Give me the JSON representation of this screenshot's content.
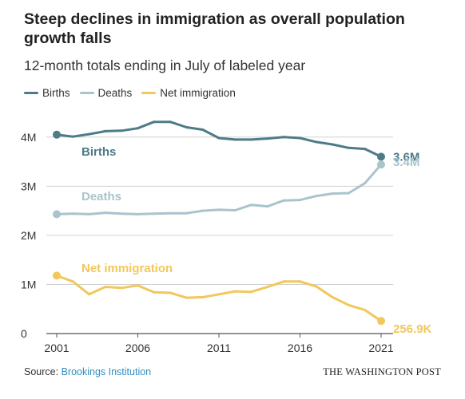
{
  "header": {
    "title": "Steep declines in immigration as overall population growth falls",
    "subtitle": "12-month totals ending in July of labeled year"
  },
  "legend": [
    {
      "label": "Births",
      "color": "#4e7b88"
    },
    {
      "label": "Deaths",
      "color": "#a9c4cb"
    },
    {
      "label": "Net immigration",
      "color": "#f2c75c"
    }
  ],
  "footer": {
    "source_prefix": "Source: ",
    "source_name": "Brookings Institution",
    "brand": "THE WASHINGTON POST"
  },
  "chart_data": {
    "type": "line",
    "title": "Steep declines in immigration as overall population growth falls",
    "subtitle": "12-month totals ending in July of labeled year",
    "xlabel": "",
    "ylabel": "",
    "x": [
      2001,
      2002,
      2003,
      2004,
      2005,
      2006,
      2007,
      2008,
      2009,
      2010,
      2011,
      2012,
      2013,
      2014,
      2015,
      2016,
      2017,
      2018,
      2019,
      2020,
      2021
    ],
    "xlim": [
      2001,
      2021
    ],
    "ylim": [
      0,
      4500000
    ],
    "x_ticks": [
      2001,
      2006,
      2011,
      2016,
      2021
    ],
    "x_tick_labels": [
      "2001",
      "2006",
      "2011",
      "2016",
      "2021"
    ],
    "y_ticks": [
      0,
      1000000,
      2000000,
      3000000,
      4000000
    ],
    "y_tick_labels": [
      "0",
      "1M",
      "2M",
      "3M",
      "4M"
    ],
    "grid": true,
    "legend_position": "top-left",
    "series": [
      {
        "name": "Births",
        "color": "#4e7b88",
        "inline_label": "Births",
        "end_label": "3.6M",
        "values": [
          4050000,
          4010000,
          4060000,
          4120000,
          4130000,
          4180000,
          4310000,
          4310000,
          4200000,
          4150000,
          3980000,
          3950000,
          3950000,
          3970000,
          4000000,
          3980000,
          3900000,
          3850000,
          3780000,
          3760000,
          3600000
        ]
      },
      {
        "name": "Deaths",
        "color": "#a9c4cb",
        "inline_label": "Deaths",
        "end_label": "3.4M",
        "values": [
          2430000,
          2440000,
          2430000,
          2460000,
          2440000,
          2430000,
          2440000,
          2450000,
          2450000,
          2500000,
          2520000,
          2510000,
          2620000,
          2590000,
          2710000,
          2720000,
          2800000,
          2850000,
          2860000,
          3060000,
          3440000
        ]
      },
      {
        "name": "Net immigration",
        "color": "#f2c75c",
        "inline_label": "Net immigration",
        "end_label": "256.9K",
        "values": [
          1180000,
          1060000,
          800000,
          950000,
          930000,
          980000,
          840000,
          830000,
          730000,
          740000,
          800000,
          860000,
          850000,
          950000,
          1060000,
          1060000,
          960000,
          740000,
          580000,
          480000,
          256900
        ]
      }
    ]
  }
}
